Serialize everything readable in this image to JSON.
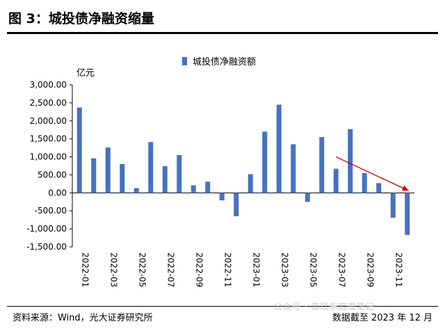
{
  "figure": {
    "title": "图 3：城投债净融资缩量",
    "source": "资料来源：Wind，光大证券研究所",
    "cutoff": "数据截至 2023 年 12 月",
    "watermark": "公众号 · 高瑞东宏观笔记"
  },
  "chart_data": {
    "type": "bar",
    "unit_label": "亿元",
    "legend": [
      "城投债净融资额"
    ],
    "series": [
      {
        "name": "城投债净融资额",
        "color": "#4472C4",
        "values": [
          2370,
          960,
          1260,
          800,
          130,
          1410,
          740,
          1050,
          210,
          310,
          -210,
          -650,
          520,
          1700,
          2450,
          1350,
          -250,
          1550,
          670,
          1770,
          550,
          270,
          -690,
          -1170
        ]
      }
    ],
    "categories": [
      "2022-01",
      "2022-02",
      "2022-03",
      "2022-04",
      "2022-05",
      "2022-06",
      "2022-07",
      "2022-08",
      "2022-09",
      "2022-10",
      "2022-11",
      "2022-12",
      "2023-01",
      "2023-02",
      "2023-03",
      "2023-04",
      "2023-05",
      "2023-06",
      "2023-07",
      "2023-08",
      "2023-09",
      "2023-10",
      "2023-11",
      "2023-12"
    ],
    "x_tick_labels": [
      "2022-01",
      "2022-03",
      "2022-05",
      "2022-07",
      "2022-09",
      "2022-11",
      "2023-01",
      "2023-03",
      "2023-05",
      "2023-07",
      "2023-09",
      "2023-11"
    ],
    "y_ticks": [
      3000,
      2500,
      2000,
      1500,
      1000,
      500,
      0,
      -500,
      -1000,
      -1500
    ],
    "y_tick_labels": [
      "3,000.00",
      "2,500.00",
      "2,000.00",
      "1,500.00",
      "1,000.00",
      "500.00",
      "0.00",
      "-500.00",
      "-1,000.00",
      "-1,500.00"
    ],
    "ylim": [
      -1500,
      3000
    ],
    "grid": false,
    "annotation": {
      "type": "trend-arrow",
      "direction": "down",
      "color": "#C00000"
    }
  }
}
